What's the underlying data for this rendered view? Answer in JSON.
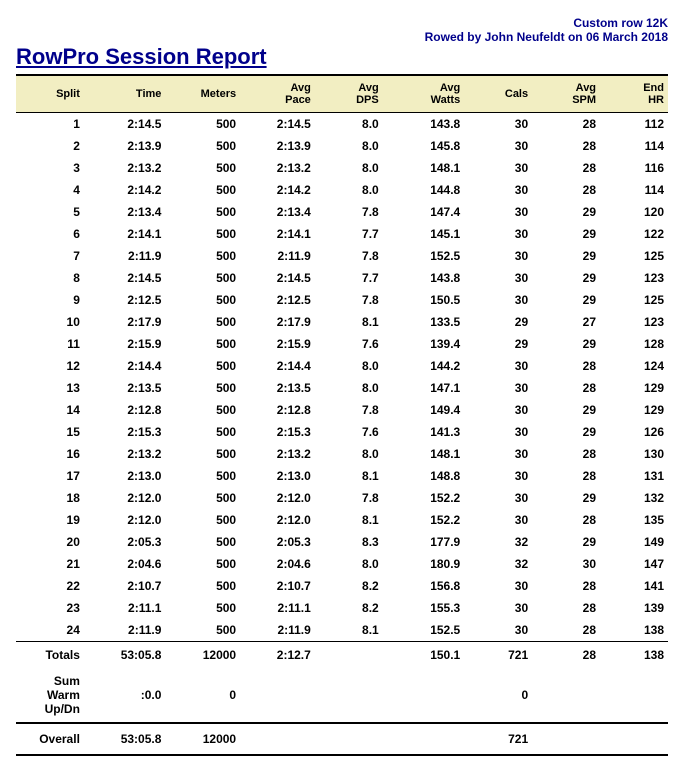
{
  "header": {
    "session_name": "Custom row 12K",
    "rowed_by": "Rowed by John Neufeldt on 06 March 2018",
    "title": "RowPro Session Report"
  },
  "columns": {
    "split": "Split",
    "time": "Time",
    "meters": "Meters",
    "pace": "Avg\nPace",
    "dps": "Avg\nDPS",
    "watts": "Avg\nWatts",
    "cals": "Cals",
    "spm": "Avg\nSPM",
    "hr": "End\nHR"
  },
  "rows": [
    {
      "split": "1",
      "time": "2:14.5",
      "meters": "500",
      "pace": "2:14.5",
      "dps": "8.0",
      "watts": "143.8",
      "cals": "30",
      "spm": "28",
      "hr": "112"
    },
    {
      "split": "2",
      "time": "2:13.9",
      "meters": "500",
      "pace": "2:13.9",
      "dps": "8.0",
      "watts": "145.8",
      "cals": "30",
      "spm": "28",
      "hr": "114"
    },
    {
      "split": "3",
      "time": "2:13.2",
      "meters": "500",
      "pace": "2:13.2",
      "dps": "8.0",
      "watts": "148.1",
      "cals": "30",
      "spm": "28",
      "hr": "116"
    },
    {
      "split": "4",
      "time": "2:14.2",
      "meters": "500",
      "pace": "2:14.2",
      "dps": "8.0",
      "watts": "144.8",
      "cals": "30",
      "spm": "28",
      "hr": "114"
    },
    {
      "split": "5",
      "time": "2:13.4",
      "meters": "500",
      "pace": "2:13.4",
      "dps": "7.8",
      "watts": "147.4",
      "cals": "30",
      "spm": "29",
      "hr": "120"
    },
    {
      "split": "6",
      "time": "2:14.1",
      "meters": "500",
      "pace": "2:14.1",
      "dps": "7.7",
      "watts": "145.1",
      "cals": "30",
      "spm": "29",
      "hr": "122"
    },
    {
      "split": "7",
      "time": "2:11.9",
      "meters": "500",
      "pace": "2:11.9",
      "dps": "7.8",
      "watts": "152.5",
      "cals": "30",
      "spm": "29",
      "hr": "125"
    },
    {
      "split": "8",
      "time": "2:14.5",
      "meters": "500",
      "pace": "2:14.5",
      "dps": "7.7",
      "watts": "143.8",
      "cals": "30",
      "spm": "29",
      "hr": "123"
    },
    {
      "split": "9",
      "time": "2:12.5",
      "meters": "500",
      "pace": "2:12.5",
      "dps": "7.8",
      "watts": "150.5",
      "cals": "30",
      "spm": "29",
      "hr": "125"
    },
    {
      "split": "10",
      "time": "2:17.9",
      "meters": "500",
      "pace": "2:17.9",
      "dps": "8.1",
      "watts": "133.5",
      "cals": "29",
      "spm": "27",
      "hr": "123"
    },
    {
      "split": "11",
      "time": "2:15.9",
      "meters": "500",
      "pace": "2:15.9",
      "dps": "7.6",
      "watts": "139.4",
      "cals": "29",
      "spm": "29",
      "hr": "128"
    },
    {
      "split": "12",
      "time": "2:14.4",
      "meters": "500",
      "pace": "2:14.4",
      "dps": "8.0",
      "watts": "144.2",
      "cals": "30",
      "spm": "28",
      "hr": "124"
    },
    {
      "split": "13",
      "time": "2:13.5",
      "meters": "500",
      "pace": "2:13.5",
      "dps": "8.0",
      "watts": "147.1",
      "cals": "30",
      "spm": "28",
      "hr": "129"
    },
    {
      "split": "14",
      "time": "2:12.8",
      "meters": "500",
      "pace": "2:12.8",
      "dps": "7.8",
      "watts": "149.4",
      "cals": "30",
      "spm": "29",
      "hr": "129"
    },
    {
      "split": "15",
      "time": "2:15.3",
      "meters": "500",
      "pace": "2:15.3",
      "dps": "7.6",
      "watts": "141.3",
      "cals": "30",
      "spm": "29",
      "hr": "126"
    },
    {
      "split": "16",
      "time": "2:13.2",
      "meters": "500",
      "pace": "2:13.2",
      "dps": "8.0",
      "watts": "148.1",
      "cals": "30",
      "spm": "28",
      "hr": "130"
    },
    {
      "split": "17",
      "time": "2:13.0",
      "meters": "500",
      "pace": "2:13.0",
      "dps": "8.1",
      "watts": "148.8",
      "cals": "30",
      "spm": "28",
      "hr": "131"
    },
    {
      "split": "18",
      "time": "2:12.0",
      "meters": "500",
      "pace": "2:12.0",
      "dps": "7.8",
      "watts": "152.2",
      "cals": "30",
      "spm": "29",
      "hr": "132"
    },
    {
      "split": "19",
      "time": "2:12.0",
      "meters": "500",
      "pace": "2:12.0",
      "dps": "8.1",
      "watts": "152.2",
      "cals": "30",
      "spm": "28",
      "hr": "135"
    },
    {
      "split": "20",
      "time": "2:05.3",
      "meters": "500",
      "pace": "2:05.3",
      "dps": "8.3",
      "watts": "177.9",
      "cals": "32",
      "spm": "29",
      "hr": "149"
    },
    {
      "split": "21",
      "time": "2:04.6",
      "meters": "500",
      "pace": "2:04.6",
      "dps": "8.0",
      "watts": "180.9",
      "cals": "32",
      "spm": "30",
      "hr": "147"
    },
    {
      "split": "22",
      "time": "2:10.7",
      "meters": "500",
      "pace": "2:10.7",
      "dps": "8.2",
      "watts": "156.8",
      "cals": "30",
      "spm": "28",
      "hr": "141"
    },
    {
      "split": "23",
      "time": "2:11.1",
      "meters": "500",
      "pace": "2:11.1",
      "dps": "8.2",
      "watts": "155.3",
      "cals": "30",
      "spm": "28",
      "hr": "139"
    },
    {
      "split": "24",
      "time": "2:11.9",
      "meters": "500",
      "pace": "2:11.9",
      "dps": "8.1",
      "watts": "152.5",
      "cals": "30",
      "spm": "28",
      "hr": "138"
    }
  ],
  "totals": {
    "label": "Totals",
    "time": "53:05.8",
    "meters": "12000",
    "pace": "2:12.7",
    "dps": "",
    "watts": "150.1",
    "cals": "721",
    "spm": "28",
    "hr": "138"
  },
  "warm": {
    "label": "Sum Warm Up/Dn",
    "time": ":0.0",
    "meters": "0",
    "pace": "",
    "dps": "",
    "watts": "",
    "cals": "0",
    "spm": "",
    "hr": ""
  },
  "overall": {
    "label": "Overall",
    "time": "53:05.8",
    "meters": "12000",
    "pace": "",
    "dps": "",
    "watts": "",
    "cals": "721",
    "spm": "",
    "hr": ""
  },
  "style": {
    "title_color": "#00008b",
    "header_bg": "#f2eec2",
    "border_color": "#000000",
    "font_family": "Arial, Helvetica, sans-serif"
  }
}
